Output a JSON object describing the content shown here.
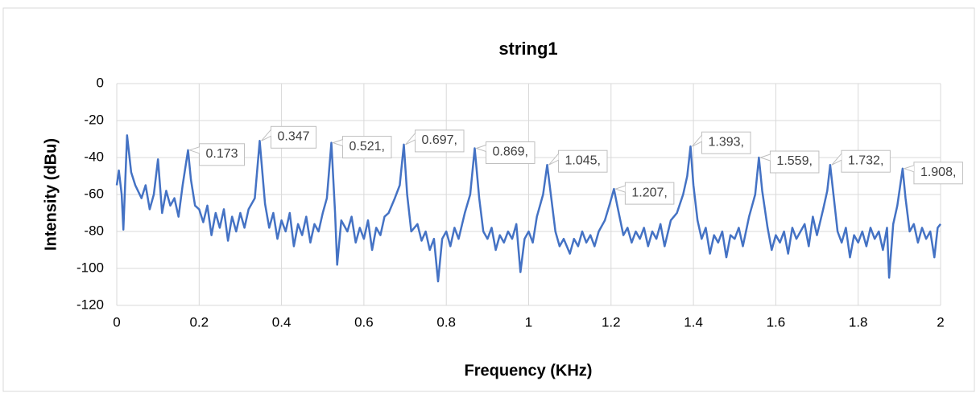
{
  "chart_data": {
    "type": "line",
    "title": "string1",
    "x_label": "Frequency (KHz)",
    "y_label": "Intensity (dBu)",
    "xlim": [
      0,
      2
    ],
    "xticks": [
      0,
      0.2,
      0.4,
      0.6,
      0.8,
      1,
      1.2,
      1.4,
      1.6,
      1.8,
      2
    ],
    "ylim": [
      -120,
      0
    ],
    "yticks": [
      -120,
      -100,
      -80,
      -60,
      -40,
      -20,
      0
    ],
    "grid": true,
    "x": [
      0,
      0.005,
      0.012,
      0.016,
      0.025,
      0.035,
      0.045,
      0.06,
      0.07,
      0.08,
      0.09,
      0.1,
      0.11,
      0.12,
      0.13,
      0.14,
      0.15,
      0.16,
      0.173,
      0.18,
      0.19,
      0.2,
      0.21,
      0.22,
      0.23,
      0.24,
      0.25,
      0.26,
      0.27,
      0.28,
      0.29,
      0.3,
      0.31,
      0.32,
      0.335,
      0.347,
      0.36,
      0.37,
      0.38,
      0.39,
      0.4,
      0.41,
      0.42,
      0.43,
      0.44,
      0.45,
      0.46,
      0.47,
      0.48,
      0.49,
      0.5,
      0.51,
      0.521,
      0.53,
      0.535,
      0.545,
      0.56,
      0.57,
      0.58,
      0.59,
      0.6,
      0.61,
      0.62,
      0.63,
      0.64,
      0.65,
      0.66,
      0.675,
      0.687,
      0.697,
      0.705,
      0.715,
      0.73,
      0.74,
      0.75,
      0.76,
      0.77,
      0.78,
      0.79,
      0.8,
      0.81,
      0.82,
      0.83,
      0.845,
      0.858,
      0.869,
      0.88,
      0.89,
      0.9,
      0.91,
      0.92,
      0.93,
      0.94,
      0.95,
      0.96,
      0.97,
      0.98,
      0.99,
      1.0,
      1.01,
      1.02,
      1.035,
      1.045,
      1.055,
      1.065,
      1.075,
      1.085,
      1.1,
      1.11,
      1.12,
      1.13,
      1.14,
      1.15,
      1.16,
      1.17,
      1.185,
      1.197,
      1.207,
      1.215,
      1.23,
      1.24,
      1.25,
      1.26,
      1.27,
      1.28,
      1.29,
      1.3,
      1.31,
      1.32,
      1.33,
      1.345,
      1.36,
      1.375,
      1.385,
      1.393,
      1.4,
      1.41,
      1.42,
      1.43,
      1.44,
      1.45,
      1.46,
      1.47,
      1.48,
      1.49,
      1.5,
      1.51,
      1.52,
      1.535,
      1.55,
      1.559,
      1.567,
      1.58,
      1.59,
      1.6,
      1.61,
      1.62,
      1.63,
      1.64,
      1.65,
      1.66,
      1.67,
      1.68,
      1.69,
      1.7,
      1.715,
      1.725,
      1.732,
      1.74,
      1.75,
      1.76,
      1.77,
      1.78,
      1.79,
      1.8,
      1.81,
      1.82,
      1.83,
      1.84,
      1.85,
      1.86,
      1.87,
      1.875,
      1.885,
      1.895,
      1.908,
      1.915,
      1.925,
      1.935,
      1.945,
      1.955,
      1.965,
      1.975,
      1.985,
      1.993,
      2
    ],
    "series": [
      {
        "color": "#4472c4",
        "values": [
          -55,
          -47,
          -60,
          -79,
          -28,
          -48,
          -55,
          -62,
          -55,
          -68,
          -60,
          -41,
          -70,
          -58,
          -66,
          -62,
          -72,
          -55,
          -36,
          -52,
          -66,
          -68,
          -75,
          -66,
          -82,
          -70,
          -78,
          -68,
          -85,
          -72,
          -80,
          -70,
          -78,
          -68,
          -62,
          -31,
          -65,
          -78,
          -70,
          -84,
          -74,
          -80,
          -70,
          -88,
          -76,
          -82,
          -72,
          -86,
          -76,
          -80,
          -70,
          -62,
          -32,
          -70,
          -98,
          -74,
          -80,
          -72,
          -86,
          -78,
          -84,
          -74,
          -90,
          -78,
          -82,
          -72,
          -70,
          -62,
          -55,
          -33,
          -60,
          -80,
          -76,
          -85,
          -80,
          -90,
          -84,
          -107,
          -84,
          -80,
          -88,
          -78,
          -84,
          -70,
          -60,
          -35,
          -62,
          -80,
          -84,
          -78,
          -90,
          -82,
          -86,
          -80,
          -84,
          -76,
          -102,
          -84,
          -80,
          -86,
          -72,
          -60,
          -44,
          -62,
          -80,
          -88,
          -84,
          -92,
          -84,
          -88,
          -80,
          -86,
          -82,
          -88,
          -80,
          -74,
          -65,
          -57,
          -66,
          -82,
          -78,
          -86,
          -80,
          -84,
          -78,
          -88,
          -80,
          -84,
          -76,
          -88,
          -74,
          -70,
          -60,
          -50,
          -34,
          -55,
          -74,
          -84,
          -78,
          -92,
          -82,
          -86,
          -80,
          -94,
          -82,
          -84,
          -78,
          -88,
          -72,
          -60,
          -40,
          -58,
          -78,
          -90,
          -82,
          -86,
          -80,
          -92,
          -78,
          -84,
          -80,
          -76,
          -88,
          -72,
          -82,
          -68,
          -58,
          -44,
          -60,
          -80,
          -86,
          -78,
          -94,
          -82,
          -86,
          -80,
          -88,
          -78,
          -84,
          -80,
          -90,
          -78,
          -105,
          -76,
          -66,
          -46,
          -62,
          -80,
          -76,
          -86,
          -78,
          -84,
          -80,
          -94,
          -78,
          -76
        ]
      }
    ],
    "annotations": [
      {
        "text": "0.173",
        "x": 0.173,
        "y": -36
      },
      {
        "text": "0.347",
        "x": 0.347,
        "y": -31
      },
      {
        "text": "0.521,",
        "x": 0.521,
        "y": -32
      },
      {
        "text": "0.697,",
        "x": 0.697,
        "y": -33
      },
      {
        "text": "0.869,",
        "x": 0.869,
        "y": -35
      },
      {
        "text": "1.045,",
        "x": 1.045,
        "y": -44
      },
      {
        "text": "1.207,",
        "x": 1.207,
        "y": -57
      },
      {
        "text": "1.393,",
        "x": 1.393,
        "y": -34
      },
      {
        "text": "1.559,",
        "x": 1.559,
        "y": -40
      },
      {
        "text": "1.732,",
        "x": 1.732,
        "y": -44
      },
      {
        "text": "1.908,",
        "x": 1.908,
        "y": -46
      }
    ]
  }
}
